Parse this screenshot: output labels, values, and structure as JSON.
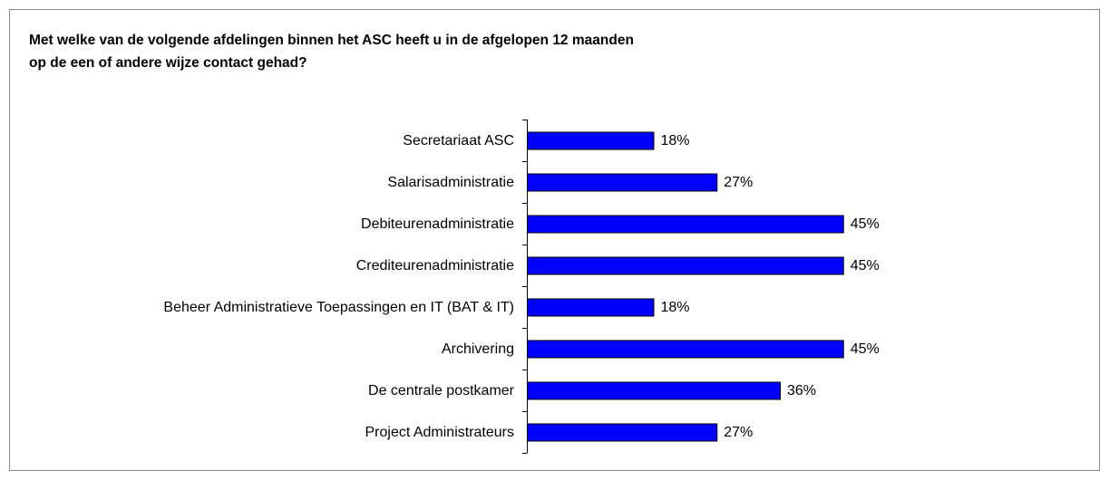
{
  "chart_data": {
    "type": "bar",
    "orientation": "horizontal",
    "title": [
      "Met welke van de volgende afdelingen binnen het ASC heeft u in de afgelopen 12 maanden",
      "op de een of andere wijze contact gehad?"
    ],
    "categories": [
      "Secretariaat ASC",
      "Salarisadministratie",
      "Debiteurenadministratie",
      "Crediteurenadministratie",
      "Beheer Administratieve Toepassingen en IT (BAT & IT)",
      "Archivering",
      "De centrale postkamer ",
      "Project Administrateurs"
    ],
    "values": [
      18,
      27,
      45,
      45,
      18,
      45,
      36,
      27
    ],
    "value_labels": [
      "18%",
      "27%",
      "45%",
      "45%",
      "18%",
      "45%",
      "36%",
      "27%"
    ],
    "color": "#0000ff"
  }
}
